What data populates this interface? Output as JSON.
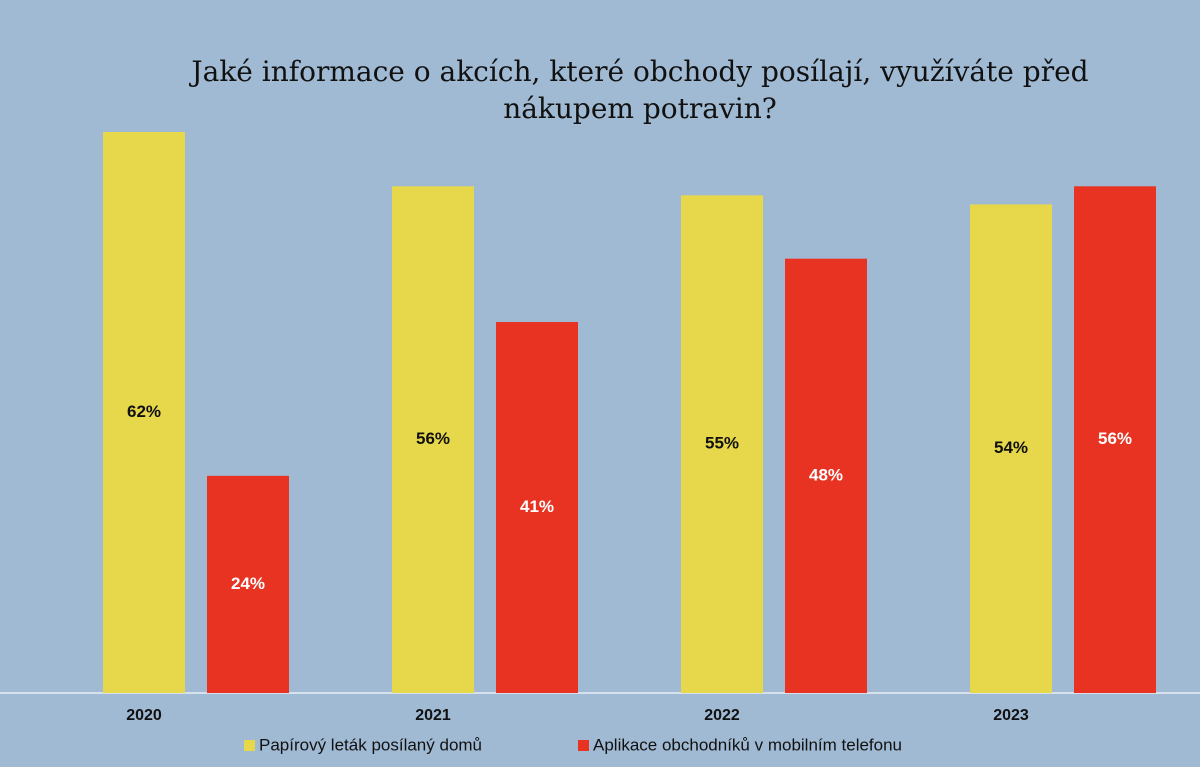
{
  "chart_data": {
    "type": "bar",
    "title": "Jaké informace o akcích, které obchody posílají, využíváte před nákupem potravin?",
    "categories": [
      "2020",
      "2021",
      "2022",
      "2023"
    ],
    "series": [
      {
        "name": "Papírový leták posílaný domů",
        "color": "#e6d84a",
        "values": [
          62,
          56,
          55,
          54
        ],
        "value_labels": [
          "62%",
          "56%",
          "55%",
          "54%"
        ]
      },
      {
        "name": "Aplikace obchodníků v mobilním telefonu",
        "color": "#e83323",
        "values": [
          24,
          41,
          48,
          56
        ],
        "value_labels": [
          "24%",
          "41%",
          "48%",
          "56%"
        ]
      }
    ]
  }
}
